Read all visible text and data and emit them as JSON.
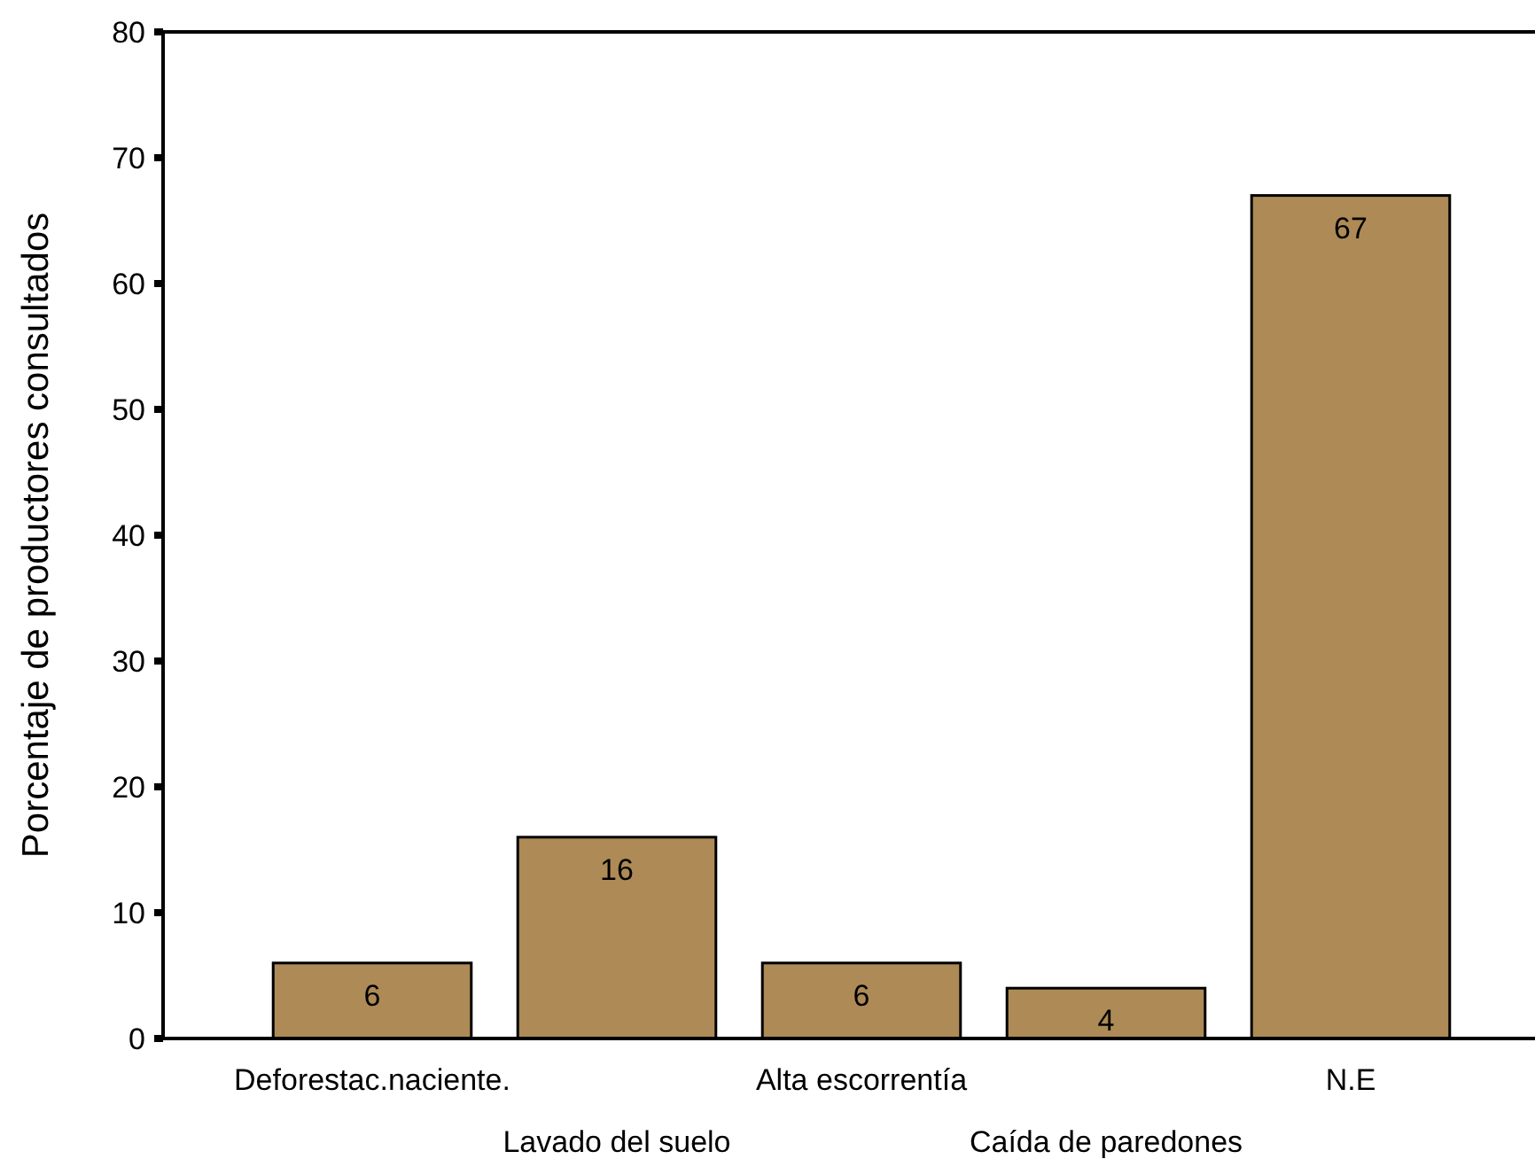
{
  "chart_data": {
    "type": "bar",
    "ylabel": "Porcentaje de productores consultados",
    "categories": [
      "Deforestac.naciente.",
      "Lavado del suelo",
      "Alta escorrentía",
      "Caída de paredones",
      "N.E"
    ],
    "values": [
      6,
      16,
      6,
      4,
      67
    ],
    "color": "#ad8a56",
    "ylim": [
      0,
      80
    ],
    "yticks": [
      0,
      10,
      20,
      30,
      40,
      50,
      60,
      70,
      80
    ],
    "data_labels": true,
    "grid": false
  }
}
